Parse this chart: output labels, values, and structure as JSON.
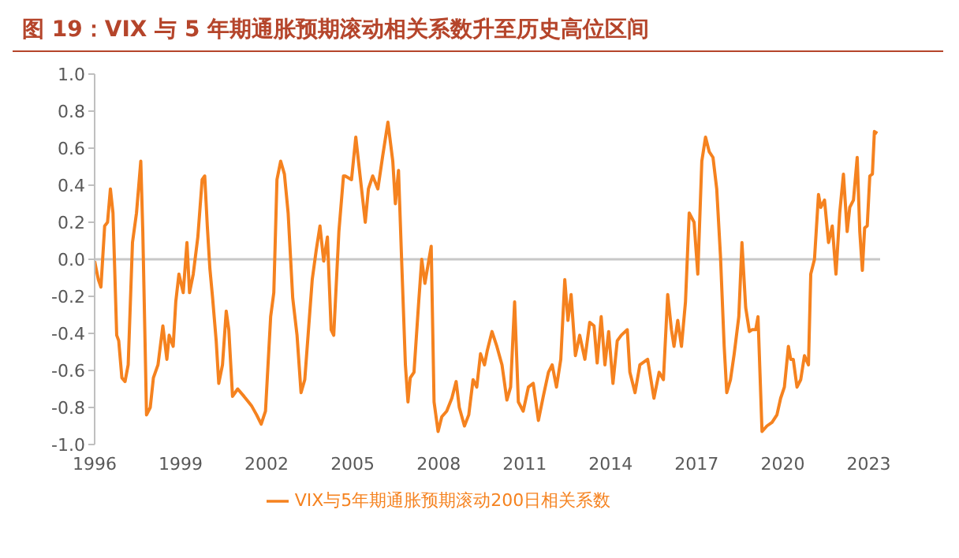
{
  "chart_data": {
    "type": "line",
    "title": "图 19：VIX 与 5 年期通胀预期滚动相关系数升至历史高位区间",
    "x": [
      1996.0,
      1996.13,
      1996.22,
      1996.35,
      1996.45,
      1996.55,
      1996.64,
      1996.77,
      1996.84,
      1996.95,
      1997.06,
      1997.17,
      1997.32,
      1997.46,
      1997.61,
      1997.68,
      1997.81,
      1997.94,
      1998.05,
      1998.21,
      1998.38,
      1998.52,
      1998.6,
      1998.74,
      1998.83,
      1998.94,
      1999.09,
      1999.22,
      1999.31,
      1999.44,
      1999.6,
      1999.75,
      1999.84,
      1999.93,
      2000.02,
      2000.11,
      2000.24,
      2000.33,
      2000.46,
      2000.59,
      2000.68,
      2000.81,
      2000.99,
      2001.21,
      2001.47,
      2001.65,
      2001.81,
      2001.96,
      2002.14,
      2002.25,
      2002.36,
      2002.49,
      2002.62,
      2002.75,
      2002.91,
      2003.06,
      2003.2,
      2003.33,
      2003.46,
      2003.59,
      2003.73,
      2003.86,
      2003.99,
      2004.12,
      2004.25,
      2004.34,
      2004.52,
      2004.68,
      2004.74,
      2004.96,
      2005.11,
      2005.26,
      2005.44,
      2005.55,
      2005.7,
      2005.88,
      2006.05,
      2006.23,
      2006.4,
      2006.49,
      2006.6,
      2006.71,
      2006.84,
      2006.93,
      2007.01,
      2007.14,
      2007.3,
      2007.41,
      2007.52,
      2007.63,
      2007.74,
      2007.84,
      2007.98,
      2008.11,
      2008.28,
      2008.46,
      2008.61,
      2008.72,
      2008.9,
      2009.05,
      2009.2,
      2009.33,
      2009.46,
      2009.6,
      2009.7,
      2009.86,
      2010.03,
      2010.21,
      2010.38,
      2010.51,
      2010.65,
      2010.78,
      2010.95,
      2011.13,
      2011.3,
      2011.48,
      2011.65,
      2011.83,
      2011.96,
      2012.11,
      2012.26,
      2012.4,
      2012.51,
      2012.62,
      2012.77,
      2012.92,
      2013.1,
      2013.27,
      2013.42,
      2013.53,
      2013.67,
      2013.8,
      2013.93,
      2014.08,
      2014.23,
      2014.37,
      2014.58,
      2014.67,
      2014.85,
      2015.02,
      2015.29,
      2015.51,
      2015.69,
      2015.84,
      2015.99,
      2016.12,
      2016.21,
      2016.34,
      2016.47,
      2016.61,
      2016.74,
      2016.91,
      2017.04,
      2017.18,
      2017.31,
      2017.44,
      2017.57,
      2017.7,
      2017.83,
      2017.96,
      2018.05,
      2018.18,
      2018.31,
      2018.47,
      2018.58,
      2018.71,
      2018.84,
      2018.93,
      2019.06,
      2019.14,
      2019.28,
      2019.45,
      2019.63,
      2019.8,
      2019.93,
      2020.06,
      2020.2,
      2020.28,
      2020.37,
      2020.5,
      2020.63,
      2020.76,
      2020.9,
      2020.98,
      2021.11,
      2021.25,
      2021.33,
      2021.46,
      2021.6,
      2021.73,
      2021.86,
      2021.99,
      2022.12,
      2022.25,
      2022.34,
      2022.47,
      2022.6,
      2022.69,
      2022.78,
      2022.86,
      2022.95,
      2023.04,
      2023.13,
      2023.2,
      2023.3
    ],
    "series": [
      {
        "name": "VIX与5年期通胀预期滚动200日相关系数",
        "color": "#f5821f",
        "values": [
          -0.01,
          -0.11,
          -0.15,
          0.18,
          0.2,
          0.38,
          0.25,
          -0.41,
          -0.44,
          -0.64,
          -0.66,
          -0.57,
          0.09,
          0.25,
          0.53,
          0.15,
          -0.84,
          -0.8,
          -0.64,
          -0.57,
          -0.36,
          -0.54,
          -0.41,
          -0.47,
          -0.23,
          -0.08,
          -0.18,
          0.09,
          -0.18,
          -0.08,
          0.12,
          0.43,
          0.45,
          0.18,
          -0.05,
          -0.2,
          -0.44,
          -0.67,
          -0.57,
          -0.28,
          -0.38,
          -0.74,
          -0.7,
          -0.74,
          -0.79,
          -0.84,
          -0.89,
          -0.82,
          -0.31,
          -0.18,
          0.43,
          0.53,
          0.46,
          0.25,
          -0.21,
          -0.41,
          -0.72,
          -0.65,
          -0.38,
          -0.11,
          0.05,
          0.18,
          -0.01,
          0.12,
          -0.38,
          -0.41,
          0.15,
          0.45,
          0.45,
          0.43,
          0.66,
          0.45,
          0.2,
          0.38,
          0.45,
          0.38,
          0.56,
          0.74,
          0.53,
          0.3,
          0.48,
          -0.01,
          -0.57,
          -0.77,
          -0.64,
          -0.61,
          -0.24,
          0.0,
          -0.13,
          -0.03,
          0.07,
          -0.77,
          -0.93,
          -0.85,
          -0.82,
          -0.75,
          -0.66,
          -0.8,
          -0.9,
          -0.84,
          -0.65,
          -0.69,
          -0.51,
          -0.57,
          -0.49,
          -0.39,
          -0.47,
          -0.57,
          -0.76,
          -0.69,
          -0.23,
          -0.77,
          -0.82,
          -0.69,
          -0.67,
          -0.87,
          -0.74,
          -0.61,
          -0.57,
          -0.69,
          -0.54,
          -0.11,
          -0.33,
          -0.19,
          -0.52,
          -0.41,
          -0.54,
          -0.34,
          -0.36,
          -0.56,
          -0.31,
          -0.57,
          -0.39,
          -0.67,
          -0.44,
          -0.41,
          -0.38,
          -0.61,
          -0.72,
          -0.57,
          -0.54,
          -0.75,
          -0.61,
          -0.65,
          -0.19,
          -0.38,
          -0.47,
          -0.33,
          -0.47,
          -0.23,
          0.25,
          0.2,
          -0.08,
          0.53,
          0.66,
          0.58,
          0.55,
          0.38,
          0.02,
          -0.47,
          -0.72,
          -0.65,
          -0.51,
          -0.31,
          0.09,
          -0.26,
          -0.39,
          -0.38,
          -0.38,
          -0.31,
          -0.93,
          -0.9,
          -0.88,
          -0.84,
          -0.75,
          -0.69,
          -0.47,
          -0.54,
          -0.54,
          -0.69,
          -0.65,
          -0.52,
          -0.57,
          -0.08,
          0.0,
          0.35,
          0.28,
          0.32,
          0.09,
          0.18,
          -0.08,
          0.25,
          0.46,
          0.15,
          0.28,
          0.32,
          0.55,
          0.15,
          -0.06,
          0.17,
          0.18,
          0.45,
          0.46,
          0.69,
          0.68
        ]
      }
    ],
    "xlim": [
      1996,
      2023.4
    ],
    "xticks": [
      1996,
      1999,
      2002,
      2005,
      2008,
      2011,
      2014,
      2017,
      2020,
      2023
    ],
    "ylim": [
      -1,
      1
    ],
    "yticks": [
      {
        "value": -1,
        "label": "-1.0"
      },
      {
        "value": -0.8,
        "label": "-0.8"
      },
      {
        "value": -0.6,
        "label": "-0.6"
      },
      {
        "value": -0.4,
        "label": "-0.4"
      },
      {
        "value": -0.2,
        "label": "-0.2"
      },
      {
        "value": 0,
        "label": "0.0"
      },
      {
        "value": 0.2,
        "label": "0.2"
      },
      {
        "value": 0.4,
        "label": "0.4"
      },
      {
        "value": 0.6,
        "label": "0.6"
      },
      {
        "value": 0.8,
        "label": "0.8"
      },
      {
        "value": 1,
        "label": "1.0"
      }
    ],
    "ref_lines": [
      {
        "axis": "y",
        "value": 0,
        "color": "#c8c8c8"
      }
    ],
    "grid": false,
    "legend": "bottom",
    "marker": "none",
    "line_style": "solid"
  }
}
